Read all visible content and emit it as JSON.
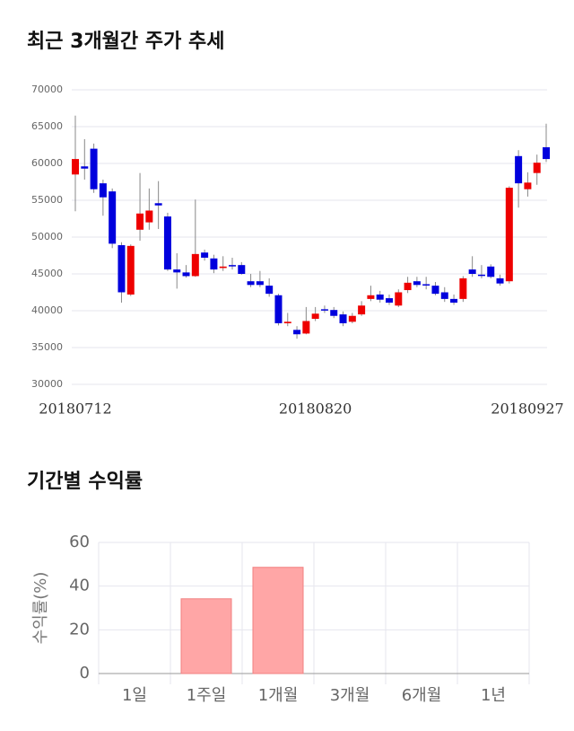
{
  "chart_data": [
    {
      "type": "candlestick",
      "title": "최근 3개월간 주가 추세",
      "categories": [
        "20180712",
        null,
        null,
        null,
        null,
        null,
        null,
        null,
        null,
        null,
        null,
        null,
        null,
        null,
        null,
        null,
        null,
        null,
        null,
        null,
        null,
        null,
        null,
        null,
        null,
        null,
        "20180820",
        null,
        null,
        null,
        null,
        null,
        null,
        null,
        null,
        null,
        null,
        null,
        null,
        null,
        null,
        null,
        null,
        null,
        null,
        null,
        null,
        null,
        null,
        null,
        null,
        "20180927"
      ],
      "open": [
        58500,
        59600,
        62000,
        57300,
        56200,
        48900,
        42200,
        51000,
        52000,
        54600,
        52800,
        45600,
        45200,
        44700,
        47900,
        47100,
        45800,
        46200,
        46200,
        44000,
        44000,
        43400,
        42100,
        38300,
        37400,
        36900,
        38900,
        40200,
        40100,
        39500,
        38500,
        39500,
        41600,
        42200,
        41700,
        40700,
        42800,
        44000,
        43600,
        43400,
        42500,
        41600,
        41600,
        45600,
        44900,
        46000,
        44400,
        44000,
        61000,
        56500,
        58700,
        62200
      ],
      "high": [
        66500,
        63300,
        62700,
        57800,
        56600,
        49300,
        49000,
        58700,
        56600,
        57600,
        53300,
        47800,
        46200,
        55100,
        48300,
        47600,
        47400,
        47200,
        46600,
        45000,
        45400,
        44400,
        42300,
        39700,
        37900,
        40500,
        40500,
        40700,
        40500,
        39900,
        39700,
        41300,
        43400,
        42700,
        42200,
        42900,
        44600,
        44600,
        44600,
        43900,
        43200,
        42200,
        44700,
        47400,
        46200,
        46300,
        44900,
        56900,
        61800,
        58800,
        61200,
        65400
      ],
      "low": [
        53500,
        57800,
        56000,
        52900,
        48500,
        41100,
        42000,
        49500,
        51000,
        51100,
        45400,
        43000,
        44500,
        44600,
        46800,
        45100,
        45400,
        45600,
        44900,
        43200,
        43200,
        41900,
        38000,
        37900,
        36200,
        36800,
        38600,
        39700,
        39000,
        37900,
        38300,
        39300,
        41300,
        41100,
        40800,
        40500,
        42400,
        43200,
        42900,
        42100,
        41200,
        40800,
        41200,
        44600,
        44400,
        44400,
        43400,
        43700,
        54000,
        55500,
        57100,
        60200
      ],
      "close": [
        60600,
        59300,
        56500,
        55400,
        49100,
        42500,
        48800,
        53200,
        53600,
        54300,
        45600,
        45200,
        44700,
        47700,
        47200,
        45600,
        46000,
        46100,
        45000,
        43500,
        43500,
        42300,
        38300,
        38500,
        36800,
        38600,
        39600,
        40100,
        39300,
        38300,
        39300,
        40700,
        42100,
        41500,
        41100,
        42500,
        43800,
        43500,
        43500,
        42300,
        41600,
        41100,
        44400,
        45000,
        44800,
        44600,
        43700,
        56700,
        57300,
        57400,
        60100,
        60600
      ],
      "up_color": "#ee0000",
      "down_color": "#0000dd",
      "ylim": [
        30000,
        70000
      ],
      "yticks": [
        30000,
        35000,
        40000,
        45000,
        50000,
        55000,
        60000,
        65000,
        70000
      ],
      "grid": true
    },
    {
      "type": "bar",
      "title": "기간별 수익률",
      "y_label": "수익률(%)",
      "categories": [
        "1일",
        "1주일",
        "1개월",
        "3개월",
        "6개월",
        "1년"
      ],
      "values": [
        null,
        34.2,
        48.6,
        null,
        null,
        null
      ],
      "color": "#ffa6a6",
      "ylim": [
        0,
        60
      ],
      "yticks": [
        0,
        20,
        40,
        60
      ],
      "grid": true
    }
  ]
}
